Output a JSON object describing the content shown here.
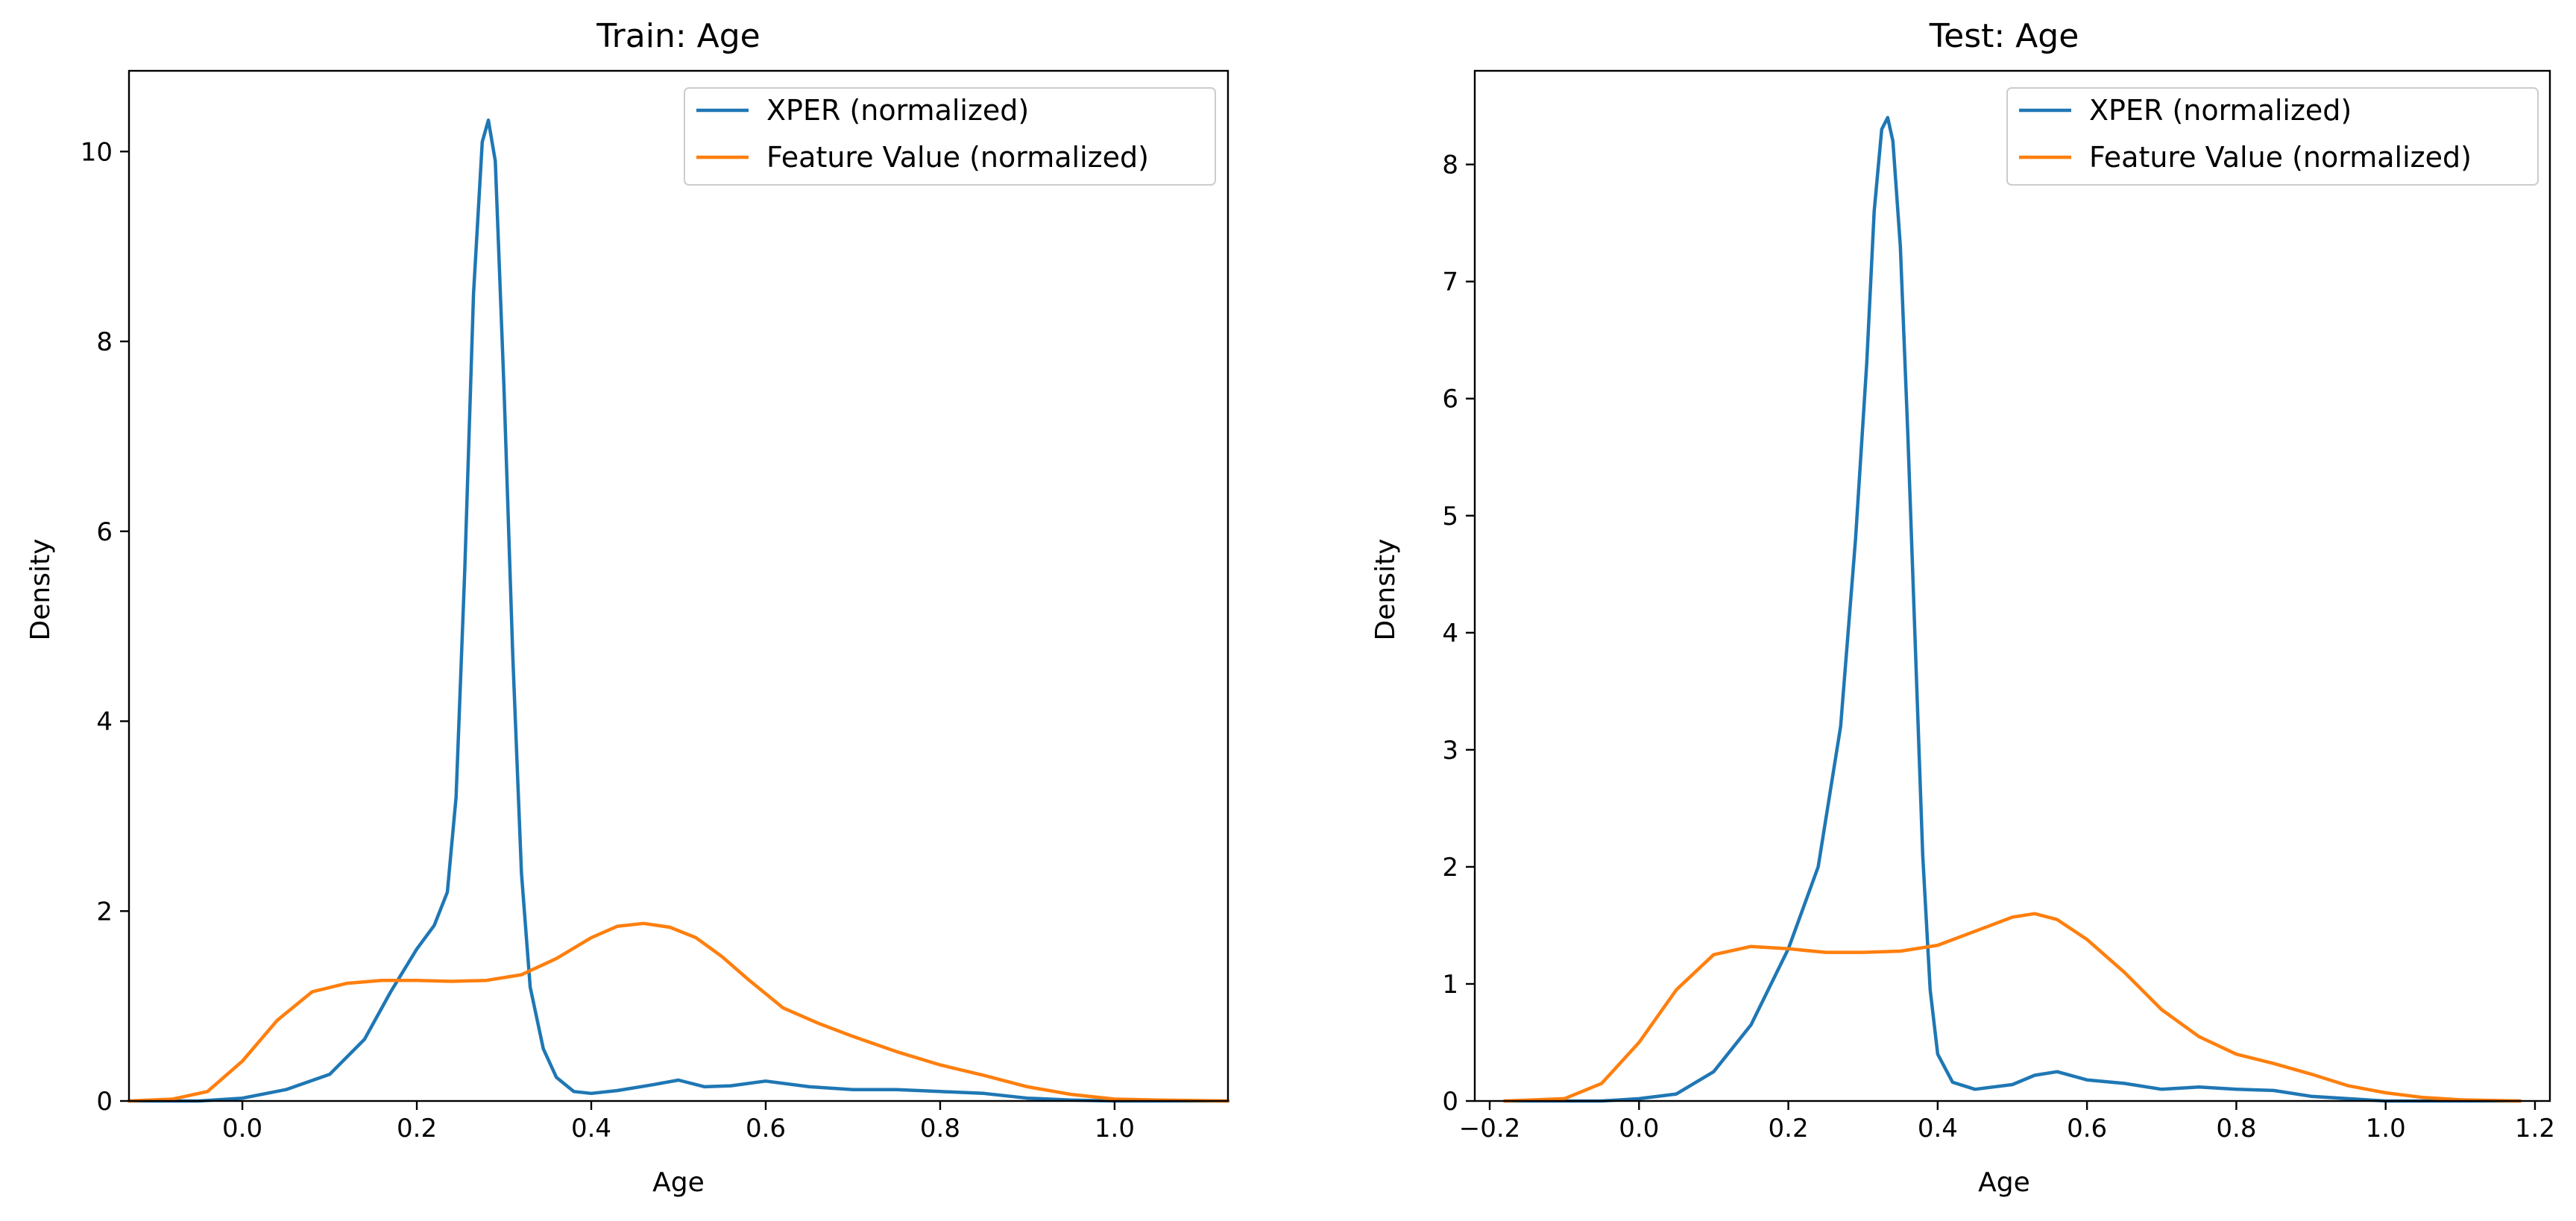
{
  "chart_data": [
    {
      "type": "line",
      "title": "Train: Age",
      "xlabel": "Age",
      "ylabel": "Density",
      "xlim": [
        -0.13,
        1.13
      ],
      "ylim": [
        0,
        10.85
      ],
      "xticks": [
        0.0,
        0.2,
        0.4,
        0.6,
        0.8,
        1.0
      ],
      "xtick_labels": [
        "0.0",
        "0.2",
        "0.4",
        "0.6",
        "0.8",
        "1.0"
      ],
      "yticks": [
        0,
        2,
        4,
        6,
        8,
        10
      ],
      "ytick_labels": [
        "0",
        "2",
        "4",
        "6",
        "8",
        "10"
      ],
      "legend_position": "top-right",
      "grid": false,
      "series": [
        {
          "name": "XPER (normalized)",
          "color": "#1f77b4",
          "x": [
            -0.13,
            -0.05,
            0.0,
            0.05,
            0.1,
            0.14,
            0.17,
            0.2,
            0.22,
            0.235,
            0.245,
            0.255,
            0.265,
            0.275,
            0.282,
            0.29,
            0.3,
            0.31,
            0.32,
            0.33,
            0.345,
            0.36,
            0.38,
            0.4,
            0.43,
            0.47,
            0.5,
            0.53,
            0.56,
            0.6,
            0.65,
            0.7,
            0.75,
            0.8,
            0.85,
            0.9,
            0.95,
            1.0,
            1.13
          ],
          "y": [
            0.0,
            0.0,
            0.03,
            0.12,
            0.28,
            0.65,
            1.15,
            1.6,
            1.85,
            2.2,
            3.2,
            5.6,
            8.5,
            10.1,
            10.33,
            9.9,
            7.5,
            4.7,
            2.4,
            1.2,
            0.55,
            0.25,
            0.1,
            0.08,
            0.11,
            0.17,
            0.22,
            0.15,
            0.16,
            0.21,
            0.15,
            0.12,
            0.12,
            0.1,
            0.08,
            0.03,
            0.01,
            0.0,
            0.0
          ]
        },
        {
          "name": "Feature Value (normalized)",
          "color": "#ff7f0e",
          "x": [
            -0.13,
            -0.08,
            -0.04,
            0.0,
            0.04,
            0.08,
            0.12,
            0.16,
            0.2,
            0.24,
            0.28,
            0.32,
            0.36,
            0.4,
            0.43,
            0.46,
            0.49,
            0.52,
            0.55,
            0.58,
            0.62,
            0.66,
            0.7,
            0.75,
            0.8,
            0.85,
            0.9,
            0.95,
            1.0,
            1.05,
            1.13
          ],
          "y": [
            0.0,
            0.02,
            0.1,
            0.42,
            0.85,
            1.15,
            1.24,
            1.27,
            1.27,
            1.26,
            1.27,
            1.33,
            1.5,
            1.72,
            1.84,
            1.87,
            1.83,
            1.72,
            1.52,
            1.28,
            0.98,
            0.82,
            0.68,
            0.52,
            0.38,
            0.27,
            0.15,
            0.07,
            0.02,
            0.01,
            0.0
          ]
        }
      ]
    },
    {
      "type": "line",
      "title": "Test: Age",
      "xlabel": "Age",
      "ylabel": "Density",
      "xlim": [
        -0.22,
        1.22
      ],
      "ylim": [
        0,
        8.8
      ],
      "xticks": [
        -0.2,
        0.0,
        0.2,
        0.4,
        0.6,
        0.8,
        1.0,
        1.2
      ],
      "xtick_labels": [
        "−0.2",
        "0.0",
        "0.2",
        "0.4",
        "0.6",
        "0.8",
        "1.0",
        "1.2"
      ],
      "yticks": [
        0,
        1,
        2,
        3,
        4,
        5,
        6,
        7,
        8
      ],
      "ytick_labels": [
        "0",
        "1",
        "2",
        "3",
        "4",
        "5",
        "6",
        "7",
        "8"
      ],
      "legend_position": "top-right",
      "grid": false,
      "series": [
        {
          "name": "XPER (normalized)",
          "color": "#1f77b4",
          "x": [
            -0.18,
            -0.05,
            0.0,
            0.05,
            0.1,
            0.15,
            0.2,
            0.24,
            0.27,
            0.29,
            0.305,
            0.315,
            0.325,
            0.333,
            0.34,
            0.35,
            0.36,
            0.37,
            0.38,
            0.39,
            0.4,
            0.42,
            0.45,
            0.5,
            0.53,
            0.56,
            0.6,
            0.65,
            0.7,
            0.75,
            0.8,
            0.85,
            0.9,
            0.95,
            1.0,
            1.18
          ],
          "y": [
            0.0,
            0.0,
            0.02,
            0.06,
            0.25,
            0.65,
            1.3,
            2.0,
            3.2,
            4.8,
            6.3,
            7.6,
            8.3,
            8.4,
            8.2,
            7.3,
            5.7,
            3.9,
            2.1,
            0.95,
            0.4,
            0.16,
            0.1,
            0.14,
            0.22,
            0.25,
            0.18,
            0.15,
            0.1,
            0.12,
            0.1,
            0.09,
            0.04,
            0.02,
            0.0,
            0.0
          ]
        },
        {
          "name": "Feature Value (normalized)",
          "color": "#ff7f0e",
          "x": [
            -0.18,
            -0.1,
            -0.05,
            0.0,
            0.05,
            0.1,
            0.15,
            0.2,
            0.25,
            0.3,
            0.35,
            0.4,
            0.45,
            0.5,
            0.53,
            0.56,
            0.6,
            0.65,
            0.7,
            0.75,
            0.8,
            0.85,
            0.9,
            0.95,
            1.0,
            1.05,
            1.1,
            1.18
          ],
          "y": [
            0.0,
            0.02,
            0.15,
            0.5,
            0.95,
            1.25,
            1.32,
            1.3,
            1.27,
            1.27,
            1.28,
            1.33,
            1.45,
            1.57,
            1.6,
            1.55,
            1.38,
            1.1,
            0.78,
            0.55,
            0.4,
            0.32,
            0.23,
            0.13,
            0.07,
            0.03,
            0.01,
            0.0
          ]
        }
      ]
    }
  ]
}
